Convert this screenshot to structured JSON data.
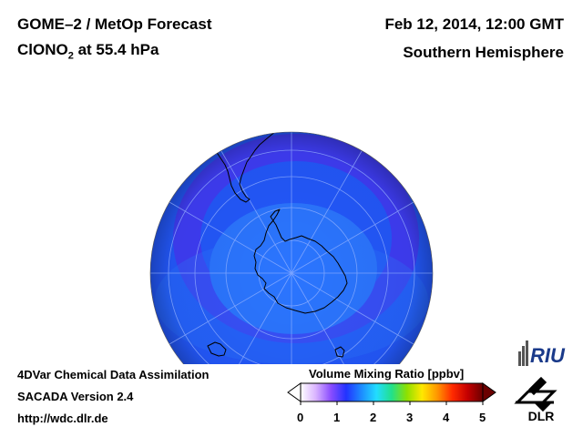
{
  "header": {
    "title": "GOME–2 / MetOp Forecast",
    "species_main": "ClONO",
    "species_sub": "2",
    "species_rest": " at 55.4 hPa",
    "datetime": "Feb 12, 2014, 12:00 GMT",
    "hemisphere": "Southern Hemisphere"
  },
  "footer": {
    "line1": "4DVar Chemical Data Assimilation",
    "line2": "SACADA Version 2.4",
    "line3": "http://wdc.dlr.de"
  },
  "colorbar": {
    "title": "Volume Mixing Ratio [ppbv]",
    "ticks": [
      "0",
      "1",
      "2",
      "3",
      "4",
      "5"
    ],
    "min": 0,
    "max": 5,
    "colors": [
      "#ffffff",
      "#d9b3ff",
      "#8a4dff",
      "#2233ff",
      "#1d8bff",
      "#22ddff",
      "#22e08a",
      "#8ee000",
      "#ffe800",
      "#ff9600",
      "#ff2a00",
      "#c40000",
      "#6b0000"
    ]
  },
  "map": {
    "projection": "orthographic polar",
    "center": "South Pole",
    "field_colors": {
      "dark": "#1b3fe6",
      "mid": "#2358fb",
      "light": "#2b75ff",
      "band": "#4a34f3"
    }
  },
  "logos": {
    "riu": "RIU",
    "dlr": "DLR"
  }
}
